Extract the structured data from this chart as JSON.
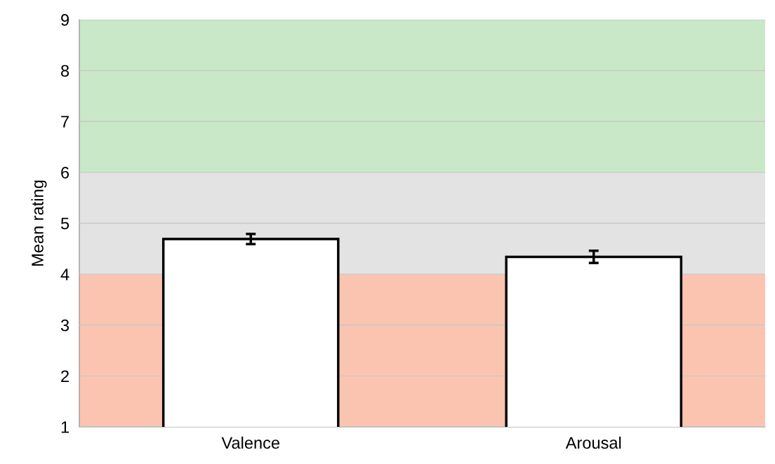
{
  "chart_data": {
    "type": "bar",
    "ylabel": "Mean rating",
    "categories": [
      "Valence",
      "Arousal"
    ],
    "series": [
      {
        "color": "#ffffff",
        "values": [
          4.69,
          4.34
        ],
        "errors": [
          0.1,
          0.12
        ]
      }
    ],
    "ylim": [
      1,
      9
    ],
    "yticks": [
      1,
      2,
      3,
      4,
      5,
      6,
      7,
      8,
      9
    ],
    "grid": "y",
    "bands": [
      {
        "axis": "y",
        "from": 1,
        "to": 4,
        "color": "#fbc4b1"
      },
      {
        "axis": "y",
        "from": 4,
        "to": 6,
        "color": "#e3e3e3"
      },
      {
        "axis": "y",
        "from": 6,
        "to": 9,
        "color": "#c9e8c7"
      }
    ]
  }
}
